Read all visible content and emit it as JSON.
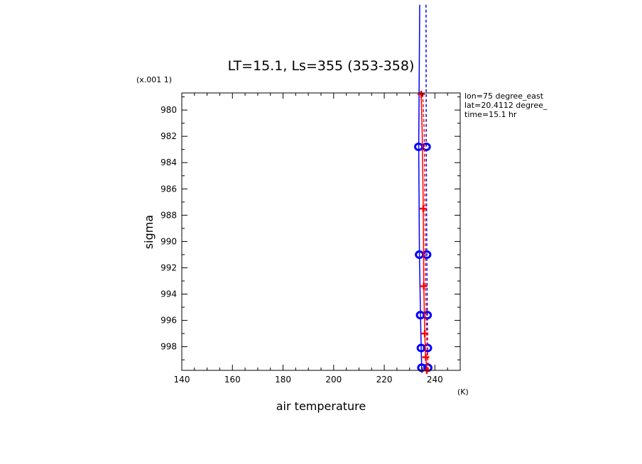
{
  "chart_data": {
    "type": "line",
    "title": "LT=15.1, Ls=355 (353-358)",
    "xlabel": "air temperature",
    "ylabel": "sigma",
    "x_unit": "(K)",
    "y_scale_label": "(x.001 1)",
    "xlim": [
      140,
      250
    ],
    "ylim": [
      999.8,
      978.7
    ],
    "x_ticks": [
      140,
      160,
      180,
      200,
      220,
      240
    ],
    "y_ticks": [
      980,
      982,
      984,
      986,
      988,
      990,
      992,
      994,
      996,
      998
    ],
    "annotations": [
      "lon=75 degree_east",
      "lat=20.4112 degree_",
      "time=15.1 hr"
    ],
    "series": [
      {
        "color": "#0000ff",
        "style": "solid",
        "marker": "circle",
        "x": [
          234.0,
          233.6,
          233.9,
          234.3,
          234.6,
          234.8,
          234.9
        ],
        "y": [
          972.0,
          982.8,
          991.0,
          995.6,
          998.1,
          999.6,
          1000.0
        ],
        "marker_y": [
          982.8,
          991.0,
          995.6,
          998.1,
          999.6
        ]
      },
      {
        "color": "#0000ff",
        "style": "dashed",
        "marker": "circle",
        "x": [
          236.5,
          236.6,
          236.8,
          237.0,
          237.1,
          237.2
        ],
        "y": [
          972.0,
          982.8,
          991.0,
          995.6,
          998.1,
          999.6
        ],
        "marker_y": [
          982.8,
          991.0,
          995.6,
          998.1,
          999.6
        ]
      },
      {
        "color": "#ff0000",
        "style": "solid",
        "marker": "plus",
        "x": [
          234.6,
          235.0,
          235.4,
          235.6,
          236.0,
          236.4,
          236.8
        ],
        "y": [
          978.8,
          981.8,
          987.5,
          993.4,
          997.0,
          998.8,
          999.8
        ],
        "marker_y": [
          978.8,
          987.5,
          993.4,
          997.0,
          998.8,
          999.8
        ]
      },
      {
        "color": "#ff0000",
        "style": "dashed",
        "marker": "plus",
        "x": [
          235.2,
          235.8,
          236.1,
          236.3,
          236.7,
          237.1,
          237.4
        ],
        "y": [
          978.8,
          981.8,
          987.5,
          993.4,
          997.0,
          998.8,
          999.8
        ],
        "marker_y": []
      }
    ]
  }
}
